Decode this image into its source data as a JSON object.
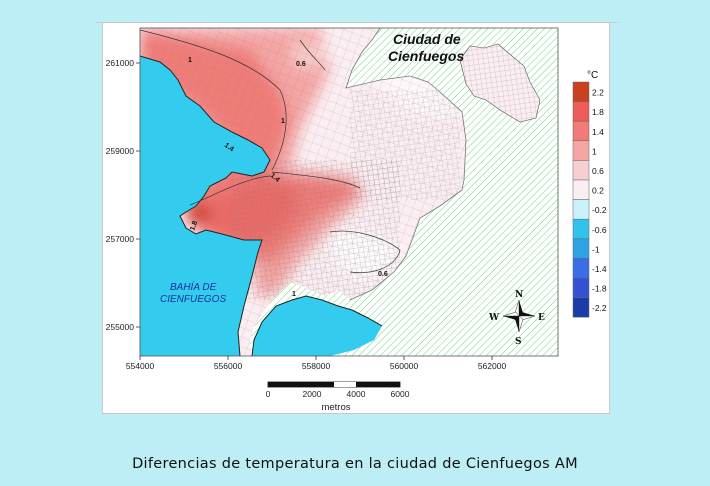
{
  "map": {
    "city_title_line1": "Ciudad de",
    "city_title_line2": "Cienfuegos",
    "bay_label_line1": "BAHÍA DE",
    "bay_label_line2": "CIENFUEGOS",
    "x_ticks": [
      "554000",
      "556000",
      "558000",
      "560000",
      "562000"
    ],
    "y_ticks": [
      "261000",
      "259000",
      "257000",
      "255000"
    ],
    "contour_labels": [
      "1",
      "0.6",
      "1",
      "1.4",
      "1.4",
      "1.8",
      "0.6",
      "1"
    ],
    "compass": {
      "n": "N",
      "s": "S",
      "e": "E",
      "w": "W"
    },
    "scale_bar": {
      "ticks": [
        "0",
        "2000",
        "4000",
        "6000"
      ],
      "unit": "metros"
    },
    "legend": {
      "unit": "°C",
      "levels": [
        "2.2",
        "1.8",
        "1.4",
        "1",
        "0.6",
        "0.2",
        "-0.2",
        "-0.6",
        "-1",
        "-1.4",
        "-1.8",
        "-2.2"
      ],
      "colors": [
        "#c8421f",
        "#ec5c58",
        "#f07b78",
        "#f4a5a4",
        "#f8cfd0",
        "#fbeef2",
        "#c9f2fb",
        "#33c2ec",
        "#2ea3e3",
        "#3a6ee4",
        "#3450d3",
        "#1a3ba8"
      ]
    },
    "colors": {
      "sea": "#33ccee",
      "land_hatch": "#3bbf55",
      "city_base": "#fcecef"
    }
  },
  "caption": "Diferencias de temperatura  en la ciudad de Cienfuegos AM"
}
